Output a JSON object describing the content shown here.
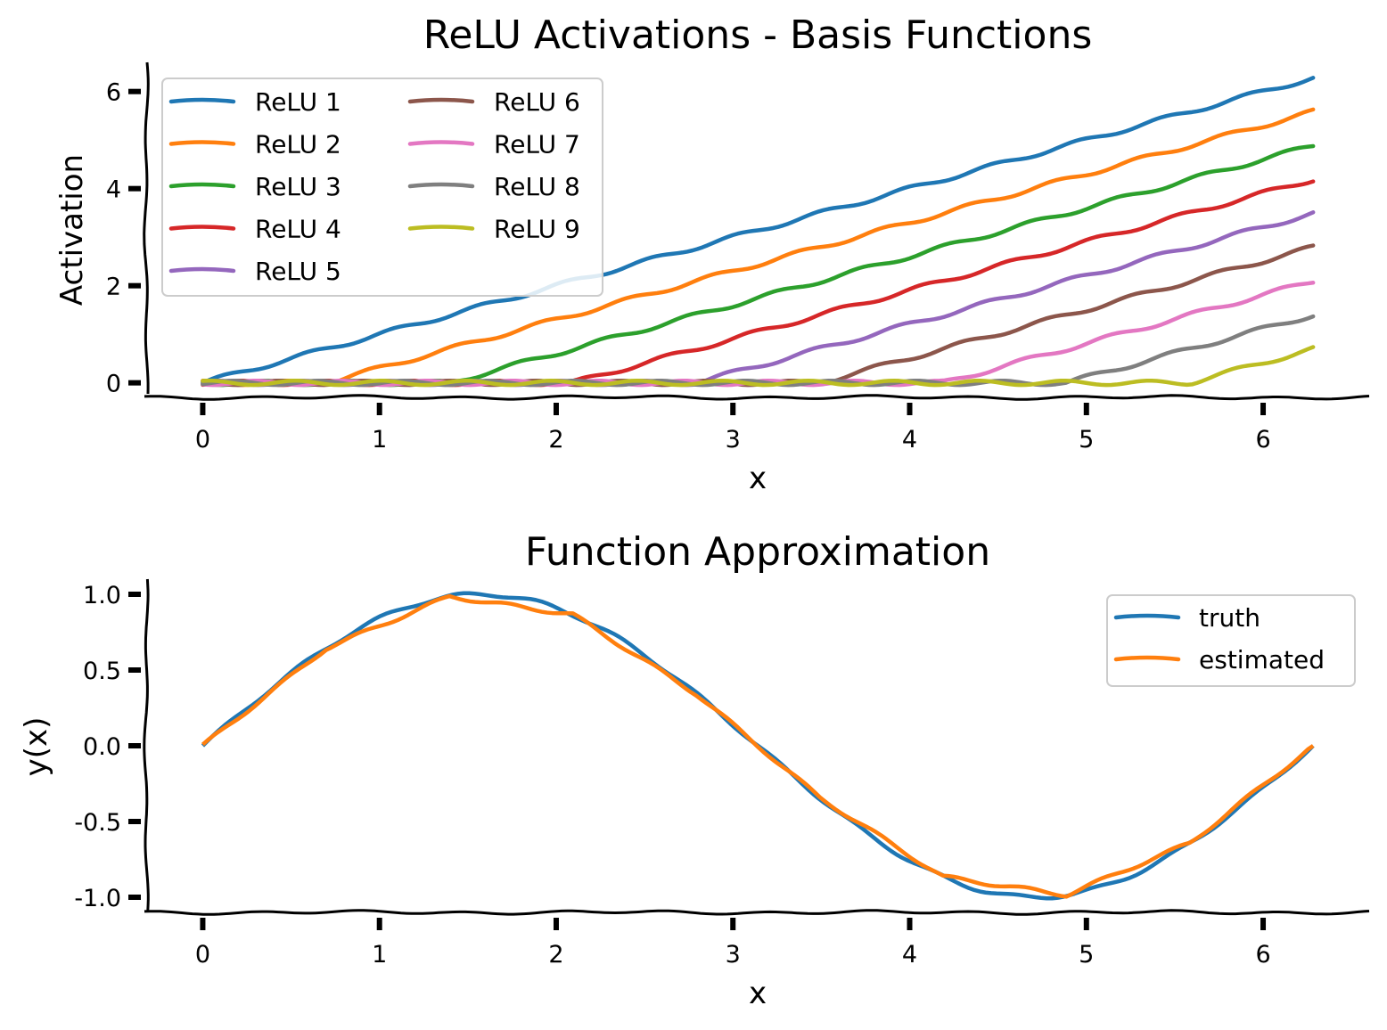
{
  "chart_data": [
    {
      "type": "line",
      "title": "ReLU Activations - Basis Functions",
      "xlabel": "x",
      "ylabel": "Activation",
      "xlim": [
        -0.32,
        6.6
      ],
      "ylim": [
        -0.3,
        6.6
      ],
      "xticks": [
        0,
        1,
        2,
        3,
        4,
        5,
        6
      ],
      "yticks": [
        0,
        2,
        4,
        6
      ],
      "grid": false,
      "legend_position": "top-left",
      "legend_columns": 2,
      "x_range": [
        0,
        6.283
      ],
      "series": [
        {
          "name": "ReLU 1",
          "color": "#1f77b4",
          "offset": 0.0
        },
        {
          "name": "ReLU 2",
          "color": "#ff7f0e",
          "offset": 0.698
        },
        {
          "name": "ReLU 3",
          "color": "#2ca02c",
          "offset": 1.396
        },
        {
          "name": "ReLU 4",
          "color": "#d62728",
          "offset": 2.094
        },
        {
          "name": "ReLU 5",
          "color": "#9467bd",
          "offset": 2.793
        },
        {
          "name": "ReLU 6",
          "color": "#8c564b",
          "offset": 3.491
        },
        {
          "name": "ReLU 7",
          "color": "#e377c2",
          "offset": 4.189
        },
        {
          "name": "ReLU 8",
          "color": "#7f7f7f",
          "offset": 4.887
        },
        {
          "name": "ReLU 9",
          "color": "#bcbd22",
          "offset": 5.585
        }
      ]
    },
    {
      "type": "line",
      "title": "Function Approximation",
      "xlabel": "x",
      "ylabel": "y(x)",
      "xlim": [
        -0.32,
        6.6
      ],
      "ylim": [
        -1.1,
        1.1
      ],
      "xticks": [
        0,
        1,
        2,
        3,
        4,
        5,
        6
      ],
      "yticks": [
        -1.0,
        -0.5,
        0.0,
        0.5,
        1.0
      ],
      "ytick_labels": [
        "-1.0",
        "-0.5",
        "0.0",
        "0.5",
        "1.0"
      ],
      "grid": false,
      "legend_position": "top-right",
      "series": [
        {
          "name": "truth",
          "color": "#1f77b4",
          "function": "sin(x)",
          "x_range": [
            0,
            6.283
          ]
        },
        {
          "name": "estimated",
          "color": "#ff7f0e",
          "x": [
            0,
            0.698,
            1.396,
            2.094,
            2.793,
            3.491,
            4.189,
            4.887,
            5.585,
            6.283
          ],
          "y": [
            0,
            0.643,
            0.985,
            0.866,
            0.342,
            -0.342,
            -0.866,
            -0.985,
            -0.643,
            0
          ]
        }
      ]
    }
  ]
}
